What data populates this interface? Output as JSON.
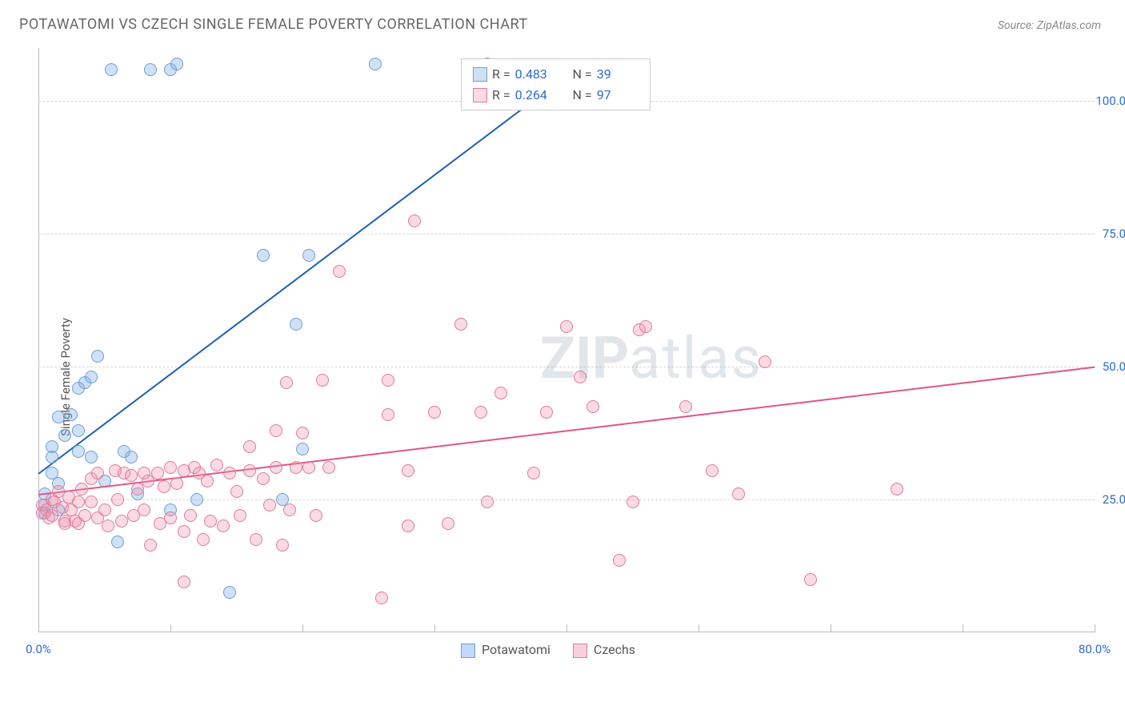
{
  "header": {
    "title": "POTAWATOMI VS CZECH SINGLE FEMALE POVERTY CORRELATION CHART",
    "source_prefix": "Source: ",
    "source_name": "ZipAtlas.com"
  },
  "chart": {
    "type": "scatter",
    "ylabel": "Single Female Poverty",
    "xlim": [
      0,
      80
    ],
    "ylim": [
      0,
      110
    ],
    "x_tick_step": 10,
    "x_tick_labels": {
      "0": "0.0%",
      "80": "80.0%"
    },
    "x_tick_color_left": "#2d6bd0",
    "x_tick_color_right": "#2d6bd0",
    "y_grid_at": [
      25,
      50,
      75,
      100
    ],
    "y_tick_labels": {
      "25": "25.0%",
      "50": "50.0%",
      "75": "75.0%",
      "100": "100.0%"
    },
    "y_tick_color": "#2d6bd0",
    "grid_color": "#d8d8d8",
    "axis_color": "#bbbbbb",
    "background_color": "#ffffff",
    "marker_radius": 8,
    "marker_border_width": 1.5,
    "line_width": 2,
    "watermark_text_bold": "ZIP",
    "watermark_text_rest": "atlas",
    "watermark_color": "rgba(120,140,160,0.22)",
    "series": [
      {
        "name": "Potawatomi",
        "fill": "rgba(120,170,230,0.35)",
        "stroke": "#6a9fd8",
        "line_color": "#1e5fb3",
        "R": "0.483",
        "N": "39",
        "trend": {
          "x1": 0,
          "y1": 30,
          "x2": 40,
          "y2": 105
        },
        "points": [
          [
            0.5,
            26
          ],
          [
            0.5,
            24
          ],
          [
            0.5,
            22.5
          ],
          [
            1,
            30
          ],
          [
            1,
            33
          ],
          [
            1,
            35
          ],
          [
            1.5,
            23
          ],
          [
            1.5,
            28
          ],
          [
            2,
            37
          ],
          [
            1.5,
            40.5
          ],
          [
            2.5,
            41
          ],
          [
            3,
            38
          ],
          [
            3.5,
            47
          ],
          [
            4,
            48
          ],
          [
            3,
            46
          ],
          [
            4.5,
            52
          ],
          [
            3,
            34
          ],
          [
            4,
            33
          ],
          [
            6.5,
            34
          ],
          [
            7,
            33
          ],
          [
            6,
            17
          ],
          [
            5,
            28.5
          ],
          [
            7.5,
            26
          ],
          [
            10,
            23
          ],
          [
            12,
            25
          ],
          [
            14.5,
            7.5
          ],
          [
            17,
            71
          ],
          [
            20.5,
            71
          ],
          [
            19.5,
            58
          ],
          [
            20,
            34.5
          ],
          [
            18.5,
            25
          ],
          [
            5.5,
            106
          ],
          [
            8.5,
            106
          ],
          [
            10,
            106
          ],
          [
            10.5,
            107
          ],
          [
            25.5,
            107
          ],
          [
            34,
            107
          ]
        ]
      },
      {
        "name": "Czechs",
        "fill": "rgba(240,150,175,0.35)",
        "stroke": "#e07b9a",
        "line_color": "#e05585",
        "R": "0.264",
        "N": "97",
        "trend": {
          "x1": 0,
          "y1": 26,
          "x2": 80,
          "y2": 50
        },
        "points": [
          [
            0.3,
            24
          ],
          [
            0.3,
            22.5
          ],
          [
            0.6,
            23
          ],
          [
            0.8,
            21.5
          ],
          [
            1,
            25
          ],
          [
            1,
            22
          ],
          [
            1.2,
            24.5
          ],
          [
            1.5,
            26.5
          ],
          [
            1.8,
            23.5
          ],
          [
            2,
            21
          ],
          [
            2,
            20.5
          ],
          [
            2.3,
            25.5
          ],
          [
            2.5,
            23
          ],
          [
            2.8,
            21
          ],
          [
            3,
            24.5
          ],
          [
            3,
            20.5
          ],
          [
            3.3,
            27
          ],
          [
            3.5,
            22
          ],
          [
            4,
            29
          ],
          [
            4,
            24.5
          ],
          [
            4.5,
            21.5
          ],
          [
            4.5,
            30
          ],
          [
            5,
            23
          ],
          [
            5.3,
            20
          ],
          [
            5.8,
            30.5
          ],
          [
            6,
            25
          ],
          [
            6.3,
            21
          ],
          [
            6.5,
            30
          ],
          [
            7,
            29.5
          ],
          [
            7.2,
            22
          ],
          [
            7.5,
            27
          ],
          [
            8,
            30
          ],
          [
            8,
            23
          ],
          [
            8.3,
            28.5
          ],
          [
            8.5,
            16.5
          ],
          [
            9,
            30
          ],
          [
            9.2,
            20.5
          ],
          [
            9.5,
            27.5
          ],
          [
            10,
            31
          ],
          [
            10,
            21.5
          ],
          [
            10.5,
            28
          ],
          [
            11,
            30.5
          ],
          [
            11,
            19
          ],
          [
            11.5,
            22
          ],
          [
            11.8,
            31
          ],
          [
            11,
            9.5
          ],
          [
            12.2,
            30
          ],
          [
            12.5,
            17.5
          ],
          [
            12.8,
            28.5
          ],
          [
            13,
            21
          ],
          [
            13.5,
            31.5
          ],
          [
            14,
            20
          ],
          [
            14.5,
            30
          ],
          [
            15,
            26.5
          ],
          [
            15.3,
            22
          ],
          [
            16,
            30.5
          ],
          [
            16,
            35
          ],
          [
            16.5,
            17.5
          ],
          [
            17,
            29
          ],
          [
            17.5,
            24
          ],
          [
            18,
            38
          ],
          [
            18,
            31
          ],
          [
            18.5,
            16.5
          ],
          [
            18.8,
            47
          ],
          [
            19,
            23
          ],
          [
            19.5,
            31
          ],
          [
            20,
            37.5
          ],
          [
            20.5,
            31
          ],
          [
            21,
            22
          ],
          [
            21.5,
            47.5
          ],
          [
            22,
            31
          ],
          [
            22.8,
            68
          ],
          [
            26,
            6.5
          ],
          [
            26.5,
            41
          ],
          [
            26.5,
            47.5
          ],
          [
            28,
            20
          ],
          [
            28,
            30.5
          ],
          [
            28.5,
            77.5
          ],
          [
            30,
            41.5
          ],
          [
            31,
            20.5
          ],
          [
            32,
            58
          ],
          [
            33.5,
            41.5
          ],
          [
            34,
            24.5
          ],
          [
            35,
            45
          ],
          [
            37.5,
            30
          ],
          [
            38.5,
            41.5
          ],
          [
            40,
            57.5
          ],
          [
            41,
            48
          ],
          [
            42,
            42.5
          ],
          [
            44,
            13.5
          ],
          [
            45,
            24.5
          ],
          [
            45.5,
            57
          ],
          [
            46,
            57.5
          ],
          [
            49,
            42.5
          ],
          [
            51,
            30.5
          ],
          [
            53,
            26
          ],
          [
            55,
            51
          ],
          [
            58.5,
            10
          ],
          [
            65,
            27
          ]
        ]
      }
    ]
  },
  "legend_top": {
    "r_label": "R =",
    "n_label": "N =",
    "value_color": "#2d6bd0",
    "label_color": "#555555",
    "border_color": "#cccccc"
  },
  "legend_bottom": {
    "items": [
      {
        "label": "Potawatomi",
        "fill": "rgba(120,170,230,0.45)",
        "stroke": "#6a9fd8"
      },
      {
        "label": "Czechs",
        "fill": "rgba(240,150,175,0.45)",
        "stroke": "#e07b9a"
      }
    ]
  }
}
